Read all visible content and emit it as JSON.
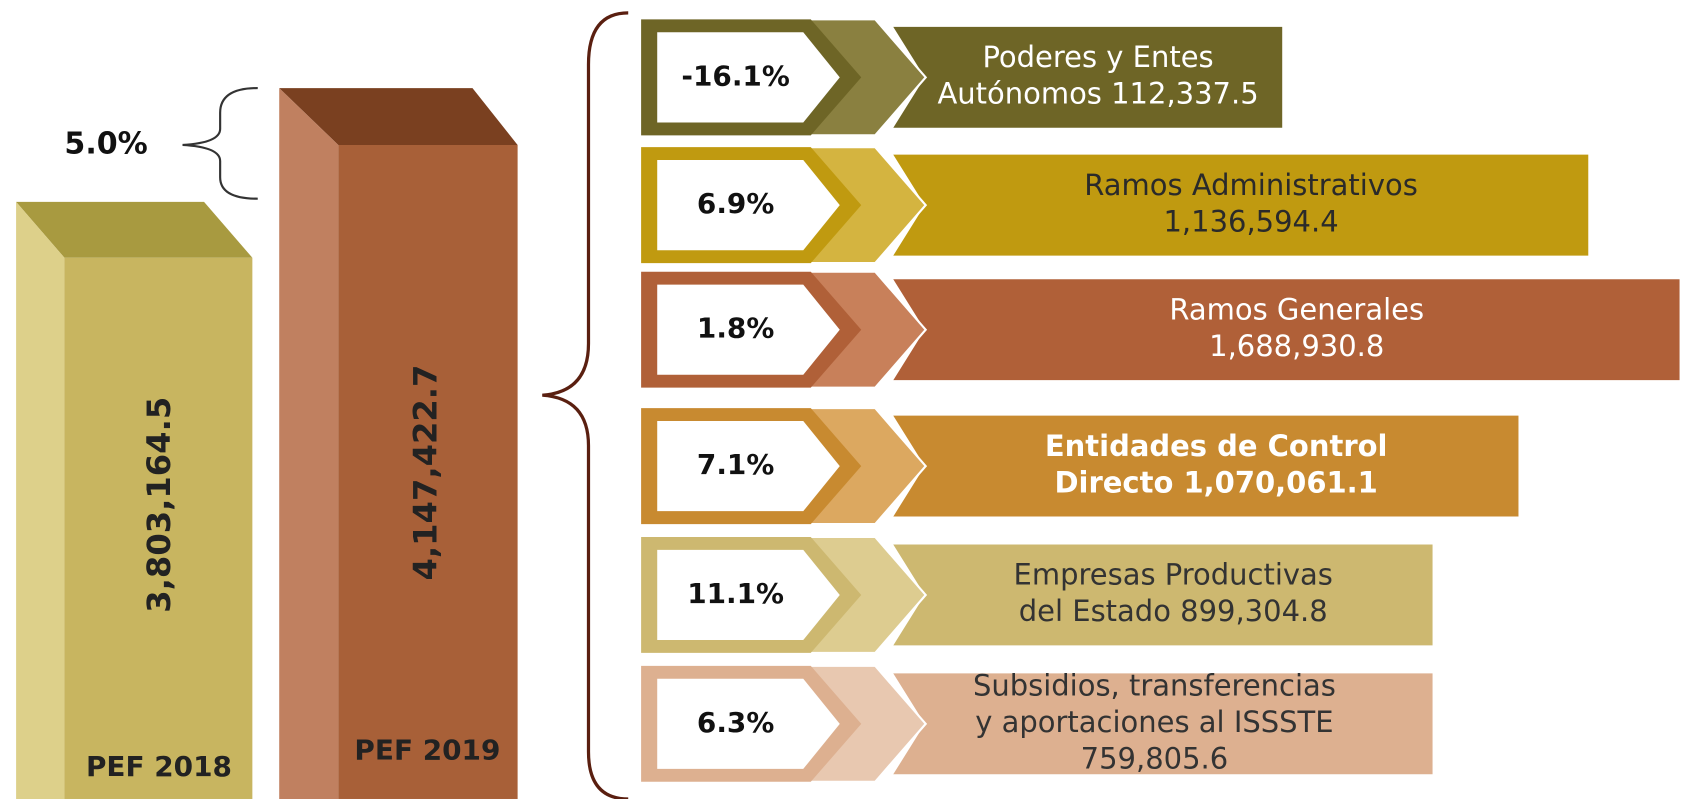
{
  "growth": "5.0%",
  "bars": [
    {
      "value": "3,803,164.5",
      "label": "PEF 2018"
    },
    {
      "value": "4,147,422.7",
      "label": "PEF 2019"
    }
  ],
  "items": [
    {
      "pct": "-16.1%",
      "lines": [
        "Poderes y Entes",
        "Autónomos 112,337.5"
      ]
    },
    {
      "pct": "6.9%",
      "lines": [
        "Ramos Administrativos",
        "1,136,594.4"
      ]
    },
    {
      "pct": "1.8%",
      "lines": [
        "Ramos Generales",
        "1,688,930.8"
      ]
    },
    {
      "pct": "7.1%",
      "lines": [
        "Entidades de Control",
        "Directo  1,070,061.1"
      ]
    },
    {
      "pct": "11.1%",
      "lines": [
        "Empresas Productivas",
        "del Estado 899,304.8"
      ]
    },
    {
      "pct": "6.3%",
      "lines": [
        "Subsidios, transferencias",
        "y aportaciones al ISSSTE",
        "759,805.6"
      ]
    }
  ]
}
